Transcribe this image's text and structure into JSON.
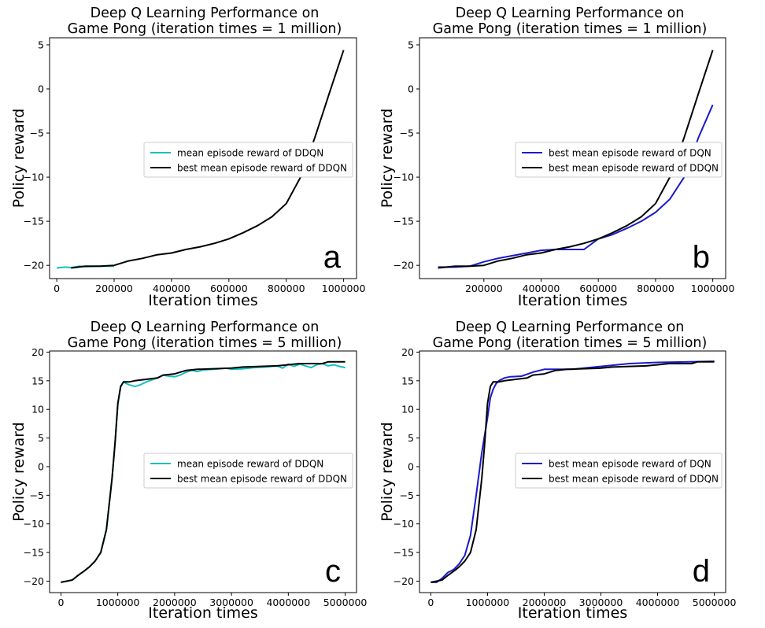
{
  "figure": {
    "colors": {
      "ddqn_mean": "#17bfbf",
      "ddqn_best": "#000000",
      "dqn_best": "#1a1acc"
    },
    "panels": [
      {
        "id": "a",
        "title_line1": "Deep Q Learning Performance on",
        "title_line2": "Game Pong (iteration times = 1 million)",
        "xlabel": "Iteration times",
        "ylabel": "Policy reward",
        "panel_label": "a",
        "legend": [
          "mean episode reward of DDQN",
          "best mean episode reward of DDQN"
        ],
        "xticks": [
          "0",
          "200000",
          "400000",
          "600000",
          "800000",
          "1000000"
        ],
        "yticks": [
          "-20",
          "-15",
          "-10",
          "-5",
          "0",
          "5"
        ]
      },
      {
        "id": "b",
        "title_line1": "Deep Q Learning Performance on",
        "title_line2": "Game Pong (iteration times = 1 million)",
        "xlabel": "Iteration times",
        "ylabel": "Policy reward",
        "panel_label": "b",
        "legend": [
          "best mean episode reward of DQN",
          "best mean episode reward of DDQN"
        ],
        "xticks": [
          "200000",
          "400000",
          "600000",
          "800000",
          "1000000"
        ],
        "yticks": [
          "-20",
          "-15",
          "-10",
          "-5",
          "0",
          "5"
        ]
      },
      {
        "id": "c",
        "title_line1": "Deep Q Learning Performance on",
        "title_line2": "Game Pong (iteration times = 5 million)",
        "xlabel": "Iteration times",
        "ylabel": "Policy reward",
        "panel_label": "c",
        "legend": [
          "mean episode reward of DDQN",
          "best mean episode reward of DDQN"
        ],
        "xticks": [
          "0",
          "1000000",
          "2000000",
          "3000000",
          "4000000",
          "5000000"
        ],
        "yticks": [
          "-20",
          "-15",
          "-10",
          "-5",
          "0",
          "5",
          "10",
          "15",
          "20"
        ]
      },
      {
        "id": "d",
        "title_line1": "Deep Q Learning Performance on",
        "title_line2": "Game Pong (iteration times = 5 million)",
        "xlabel": "Iteration times",
        "ylabel": "Policy reward",
        "panel_label": "d",
        "legend": [
          "best mean episode reward of DQN",
          "best mean episode reward of DDQN"
        ],
        "xticks": [
          "0",
          "1000000",
          "2000000",
          "3000000",
          "4000000",
          "5000000"
        ],
        "yticks": [
          "-20",
          "-15",
          "-10",
          "-5",
          "0",
          "5",
          "10",
          "15",
          "20"
        ]
      }
    ]
  },
  "chart_data": [
    {
      "type": "line",
      "panel": "a",
      "title": "Deep Q Learning Performance on Game Pong (iteration times = 1 million)",
      "xlabel": "Iteration times",
      "ylabel": "Policy reward",
      "xlim": [
        -25000,
        1045000
      ],
      "ylim": [
        -21.5,
        5.8
      ],
      "legend_position": "center-right",
      "grid": false,
      "series": [
        {
          "name": "mean episode reward of DDQN",
          "color_key": "ddqn_mean",
          "x": [
            0,
            30000,
            50000,
            80000,
            100000,
            150000,
            200000
          ],
          "y": [
            -20.3,
            -20.2,
            -20.25,
            -20.1,
            -20.15,
            -20.1,
            -20.1
          ]
        },
        {
          "name": "best mean episode reward of DDQN",
          "color_key": "ddqn_best",
          "x": [
            50000,
            100000,
            150000,
            200000,
            250000,
            300000,
            350000,
            400000,
            450000,
            500000,
            550000,
            600000,
            650000,
            700000,
            750000,
            800000,
            850000,
            900000,
            950000,
            1000000
          ],
          "y": [
            -20.3,
            -20.1,
            -20.1,
            -20.0,
            -19.5,
            -19.2,
            -18.8,
            -18.6,
            -18.2,
            -17.9,
            -17.5,
            -17.0,
            -16.3,
            -15.5,
            -14.5,
            -13.0,
            -10.0,
            -5.5,
            -0.5,
            4.4
          ]
        }
      ]
    },
    {
      "type": "line",
      "panel": "b",
      "title": "Deep Q Learning Performance on Game Pong (iteration times = 1 million)",
      "xlabel": "Iteration times",
      "ylabel": "Policy reward",
      "xlim": [
        -25000,
        1045000
      ],
      "ylim": [
        -21.5,
        5.8
      ],
      "legend_position": "center-right",
      "grid": false,
      "series": [
        {
          "name": "best mean episode reward of DQN",
          "color_key": "dqn_best",
          "x": [
            40000,
            100000,
            150000,
            200000,
            250000,
            300000,
            350000,
            400000,
            450000,
            500000,
            550000,
            600000,
            650000,
            700000,
            750000,
            800000,
            850000,
            900000,
            950000,
            1000000
          ],
          "y": [
            -20.2,
            -20.2,
            -20.1,
            -19.6,
            -19.2,
            -18.9,
            -18.6,
            -18.3,
            -18.2,
            -18.2,
            -18.2,
            -17.0,
            -16.5,
            -15.8,
            -15.0,
            -14.0,
            -12.5,
            -10.0,
            -5.5,
            -1.8
          ]
        },
        {
          "name": "best mean episode reward of DDQN",
          "color_key": "ddqn_best",
          "x": [
            40000,
            100000,
            150000,
            200000,
            250000,
            300000,
            350000,
            400000,
            450000,
            500000,
            550000,
            600000,
            650000,
            700000,
            750000,
            800000,
            850000,
            900000,
            950000,
            1000000
          ],
          "y": [
            -20.3,
            -20.1,
            -20.1,
            -20.0,
            -19.5,
            -19.2,
            -18.8,
            -18.6,
            -18.2,
            -17.9,
            -17.5,
            -17.0,
            -16.3,
            -15.5,
            -14.5,
            -13.0,
            -10.0,
            -5.5,
            -0.5,
            4.4
          ]
        }
      ]
    },
    {
      "type": "line",
      "panel": "c",
      "title": "Deep Q Learning Performance on Game Pong (iteration times = 5 million)",
      "xlabel": "Iteration times",
      "ylabel": "Policy reward",
      "xlim": [
        -200000,
        5200000
      ],
      "ylim": [
        -22,
        20.2
      ],
      "legend_position": "center-right",
      "grid": false,
      "series": [
        {
          "name": "mean episode reward of DDQN",
          "color_key": "ddqn_mean",
          "x": [
            0,
            100000,
            200000,
            300000,
            400000,
            500000,
            600000,
            700000,
            800000,
            900000,
            950000,
            1000000,
            1050000,
            1100000,
            1150000,
            1200000,
            1300000,
            1400000,
            1500000,
            1700000,
            1800000,
            1900000,
            2000000,
            2100000,
            2200000,
            2300000,
            2400000,
            2500000,
            2700000,
            2900000,
            3000000,
            3200000,
            3400000,
            3600000,
            3800000,
            3900000,
            4000000,
            4100000,
            4200000,
            4300000,
            4400000,
            4500000,
            4600000,
            4700000,
            4800000,
            4900000,
            5000000
          ],
          "y": [
            -20.2,
            -20.0,
            -19.8,
            -19.0,
            -18.3,
            -17.5,
            -16.5,
            -15.0,
            -11.0,
            -2.0,
            4.0,
            11.0,
            14.0,
            14.8,
            14.5,
            14.3,
            14.0,
            14.3,
            14.8,
            15.5,
            16.0,
            15.8,
            15.7,
            16.0,
            16.5,
            16.8,
            16.6,
            16.9,
            17.0,
            17.2,
            17.0,
            17.1,
            17.3,
            17.4,
            17.6,
            17.2,
            17.9,
            17.5,
            17.9,
            17.6,
            17.3,
            17.8,
            18.0,
            17.6,
            17.8,
            17.5,
            17.3
          ]
        },
        {
          "name": "best mean episode reward of DDQN",
          "color_key": "ddqn_best",
          "x": [
            0,
            100000,
            200000,
            300000,
            400000,
            500000,
            600000,
            700000,
            800000,
            900000,
            950000,
            1000000,
            1050000,
            1100000,
            1200000,
            1300000,
            1700000,
            1800000,
            2000000,
            2200000,
            2400000,
            3000000,
            3200000,
            3800000,
            4000000,
            4200000,
            4600000,
            4700000,
            5000000
          ],
          "y": [
            -20.2,
            -20.0,
            -19.8,
            -19.0,
            -18.3,
            -17.5,
            -16.5,
            -15.0,
            -11.0,
            -2.0,
            4.0,
            11.0,
            14.0,
            14.8,
            14.8,
            15.0,
            15.5,
            16.0,
            16.2,
            16.8,
            17.0,
            17.2,
            17.4,
            17.6,
            17.8,
            18.0,
            18.0,
            18.3,
            18.3
          ]
        }
      ]
    },
    {
      "type": "line",
      "panel": "d",
      "title": "Deep Q Learning Performance on Game Pong (iteration times = 5 million)",
      "xlabel": "Iteration times",
      "ylabel": "Policy reward",
      "xlim": [
        -200000,
        5200000
      ],
      "ylim": [
        -22,
        20.2
      ],
      "legend_position": "center-right",
      "grid": false,
      "series": [
        {
          "name": "best mean episode reward of DQN",
          "color_key": "dqn_best",
          "x": [
            0,
            100000,
            200000,
            300000,
            400000,
            500000,
            600000,
            700000,
            800000,
            900000,
            1000000,
            1050000,
            1100000,
            1150000,
            1200000,
            1300000,
            1400000,
            1600000,
            1800000,
            2000000,
            2500000,
            3000000,
            3500000,
            4000000,
            5000000
          ],
          "y": [
            -20.2,
            -20.2,
            -19.5,
            -18.5,
            -18.0,
            -17.0,
            -15.5,
            -12.0,
            -5.0,
            2.5,
            8.5,
            12.0,
            13.5,
            14.5,
            15.0,
            15.5,
            15.7,
            15.8,
            16.5,
            17.0,
            17.0,
            17.5,
            18.0,
            18.2,
            18.4
          ]
        },
        {
          "name": "best mean episode reward of DDQN",
          "color_key": "ddqn_best",
          "x": [
            0,
            100000,
            200000,
            300000,
            400000,
            500000,
            600000,
            700000,
            800000,
            900000,
            950000,
            1000000,
            1050000,
            1100000,
            1200000,
            1300000,
            1700000,
            1800000,
            2000000,
            2200000,
            2400000,
            3000000,
            3200000,
            3800000,
            4000000,
            4200000,
            4600000,
            4700000,
            5000000
          ],
          "y": [
            -20.2,
            -20.0,
            -19.8,
            -19.0,
            -18.3,
            -17.5,
            -16.5,
            -15.0,
            -11.0,
            -2.0,
            4.0,
            11.0,
            14.0,
            14.8,
            14.8,
            15.0,
            15.5,
            16.0,
            16.2,
            16.8,
            17.0,
            17.2,
            17.4,
            17.6,
            17.8,
            18.0,
            18.0,
            18.3,
            18.3
          ]
        }
      ]
    }
  ]
}
